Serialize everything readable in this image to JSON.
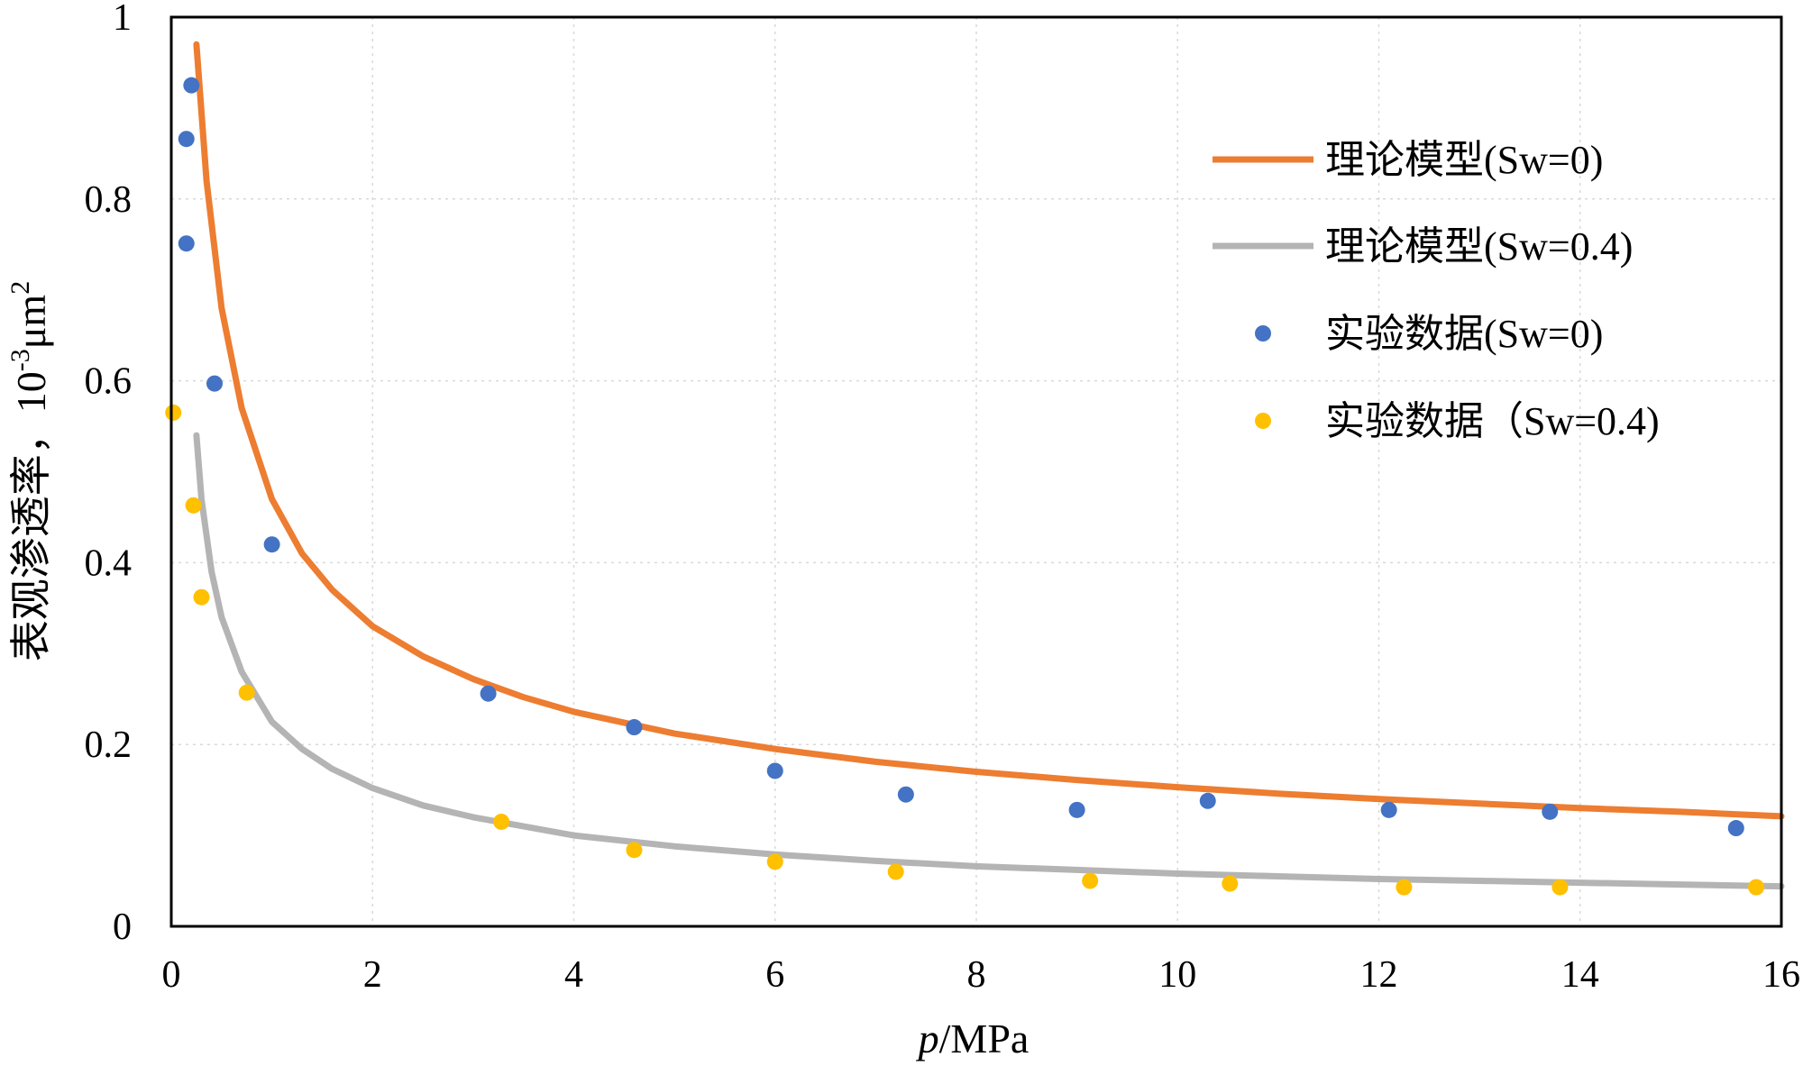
{
  "chart_data": {
    "type": "scatter",
    "title": "",
    "xlabel": "p/MPa",
    "xlabel_italic_part": "p",
    "xlabel_rest": "/MPa",
    "ylabel": "表观渗透率，10-3μm2",
    "ylabel_main": "表观渗透率，10",
    "ylabel_sup1": "-3",
    "ylabel_mid": "μm",
    "ylabel_sup2": "2",
    "xlim": [
      0,
      16
    ],
    "ylim": [
      0,
      1
    ],
    "x_ticks": [
      0,
      2,
      4,
      6,
      8,
      10,
      12,
      14,
      16
    ],
    "x_tick_labels": [
      "0",
      "2",
      "4",
      "6",
      "8",
      "10",
      "12",
      "14",
      "16"
    ],
    "y_ticks": [
      0,
      0.2,
      0.4,
      0.6,
      0.8,
      1
    ],
    "y_tick_labels": [
      "0",
      "0.2",
      "0.4",
      "0.6",
      "0.8",
      "1"
    ],
    "grid": true,
    "legend_position": "top-right",
    "series": [
      {
        "name": "理论模型(Sw=0)",
        "kind": "line",
        "color": "#ED7D31",
        "x": [
          0.25,
          0.35,
          0.5,
          0.7,
          1.0,
          1.3,
          1.6,
          2.0,
          2.5,
          3.0,
          3.5,
          4.0,
          5.0,
          6.0,
          7.0,
          8.0,
          9.0,
          10.0,
          11.0,
          12.0,
          13.0,
          14.0,
          15.0,
          16.0
        ],
        "y": [
          0.97,
          0.82,
          0.68,
          0.57,
          0.47,
          0.41,
          0.37,
          0.33,
          0.297,
          0.272,
          0.252,
          0.236,
          0.212,
          0.195,
          0.181,
          0.17,
          0.161,
          0.153,
          0.146,
          0.14,
          0.135,
          0.13,
          0.126,
          0.121
        ]
      },
      {
        "name": "理论模型(Sw=0.4)",
        "kind": "line",
        "color": "#B4B4B4",
        "x": [
          0.25,
          0.3,
          0.4,
          0.5,
          0.7,
          1.0,
          1.3,
          1.6,
          2.0,
          2.5,
          3.0,
          4.0,
          5.0,
          6.0,
          7.0,
          8.0,
          9.0,
          10.0,
          11.0,
          12.0,
          13.0,
          14.0,
          15.0,
          16.0
        ],
        "y": [
          0.54,
          0.47,
          0.39,
          0.34,
          0.28,
          0.225,
          0.195,
          0.173,
          0.152,
          0.133,
          0.12,
          0.1,
          0.088,
          0.079,
          0.072,
          0.066,
          0.062,
          0.058,
          0.055,
          0.052,
          0.05,
          0.048,
          0.046,
          0.044
        ]
      },
      {
        "name": "实验数据(Sw=0)",
        "kind": "scatter",
        "color": "#4472C4",
        "x": [
          0.2,
          0.15,
          0.15,
          0.43,
          1.0,
          3.15,
          4.6,
          6.0,
          7.3,
          9.0,
          10.3,
          12.1,
          13.7,
          15.55
        ],
        "y": [
          0.925,
          0.866,
          0.751,
          0.597,
          0.42,
          0.256,
          0.219,
          0.171,
          0.145,
          0.128,
          0.138,
          0.128,
          0.126,
          0.108
        ]
      },
      {
        "name": "实验数据（Sw=0.4)",
        "kind": "scatter",
        "color": "#FFC000",
        "x": [
          0.02,
          0.22,
          0.3,
          0.75,
          3.28,
          4.6,
          6.0,
          7.2,
          9.13,
          10.52,
          12.25,
          13.8,
          15.75
        ],
        "y": [
          0.565,
          0.463,
          0.362,
          0.257,
          0.115,
          0.084,
          0.071,
          0.06,
          0.05,
          0.047,
          0.043,
          0.043,
          0.043
        ]
      }
    ]
  }
}
